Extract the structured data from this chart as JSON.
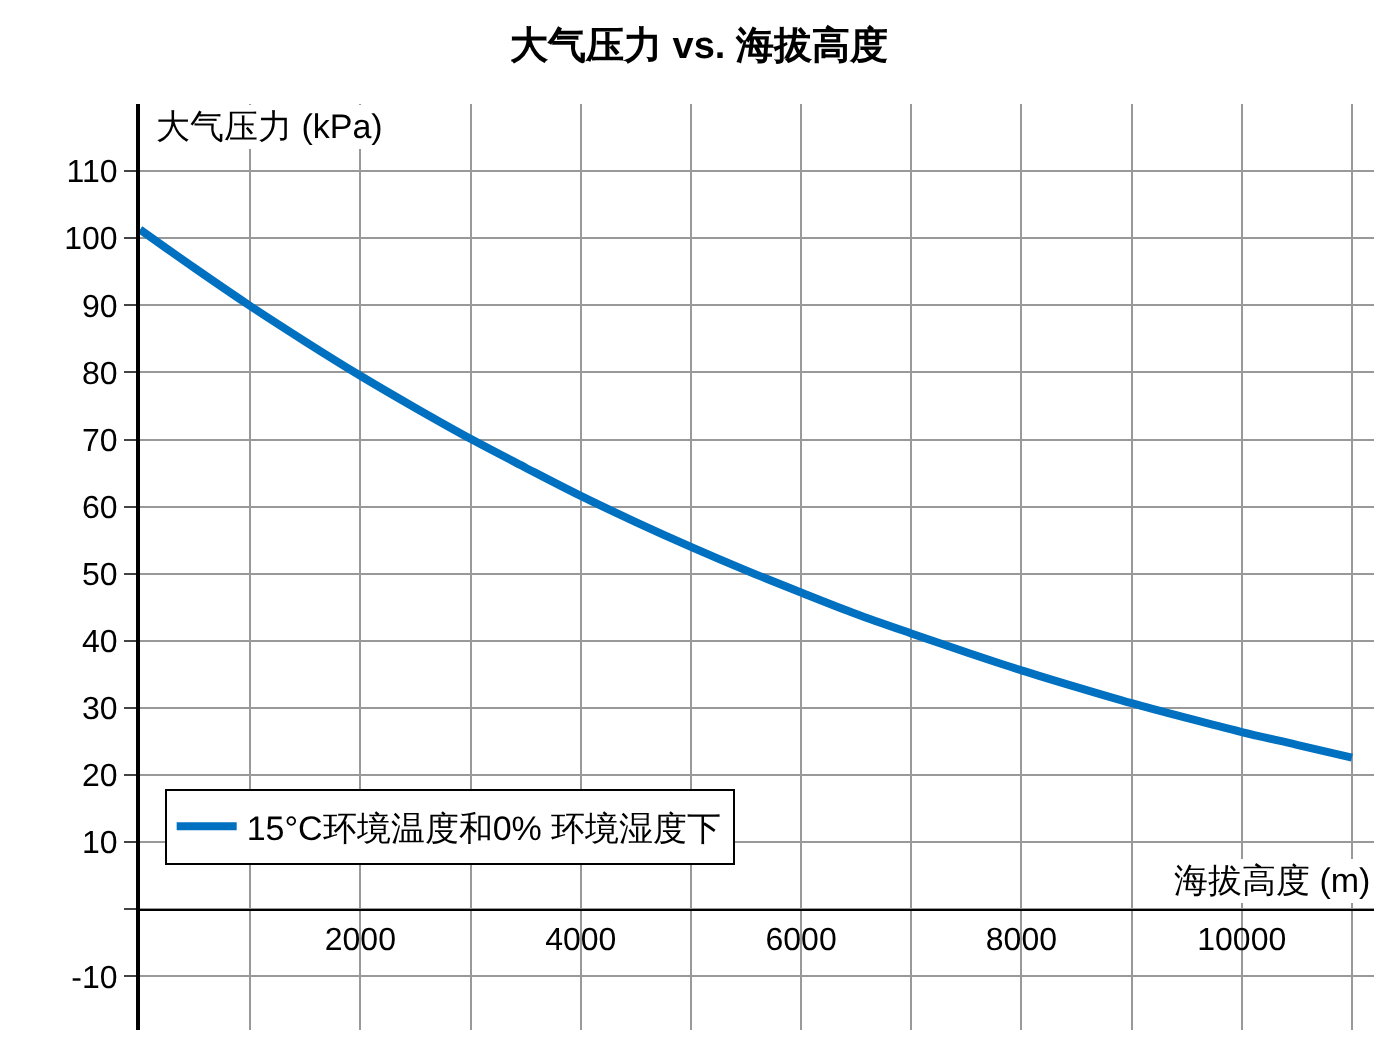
{
  "chart_data": {
    "type": "line",
    "title": "大气压力 vs. 海拔高度",
    "xlabel": "海拔高度 (m)",
    "ylabel": "大气压力 (kPa)",
    "x": [
      0,
      500,
      1000,
      1500,
      2000,
      2500,
      3000,
      3500,
      4000,
      4500,
      5000,
      5500,
      6000,
      6500,
      7000,
      7500,
      8000,
      8500,
      9000,
      9500,
      10000,
      10500,
      11000
    ],
    "series": [
      {
        "name": "15°C环境温度和0% 环境湿度下",
        "color": "#0070c0",
        "values": [
          101.3,
          95.5,
          89.9,
          84.6,
          79.5,
          74.7,
          70.1,
          65.8,
          61.6,
          57.7,
          54.0,
          50.5,
          47.2,
          44.0,
          41.1,
          38.3,
          35.6,
          33.1,
          30.7,
          28.5,
          26.4,
          24.5,
          22.6
        ]
      }
    ],
    "xlim": [
      0,
      11200
    ],
    "ylim": [
      -18,
      120
    ],
    "xticks": [
      {
        "value": 0,
        "label": null
      },
      {
        "value": 1000,
        "label": null
      },
      2000,
      {
        "value": 3000,
        "label": null
      },
      4000,
      {
        "value": 5000,
        "label": null
      },
      6000,
      {
        "value": 7000,
        "label": null
      },
      8000,
      {
        "value": 9000,
        "label": null
      },
      10000,
      {
        "value": 11000,
        "label": null
      }
    ],
    "yticks": [
      -10,
      {
        "value": 0,
        "label": null
      },
      10,
      20,
      30,
      40,
      50,
      60,
      70,
      80,
      90,
      100,
      110
    ],
    "grid": true,
    "legend": "bottom left",
    "marker": "none",
    "line_style": "solid"
  }
}
